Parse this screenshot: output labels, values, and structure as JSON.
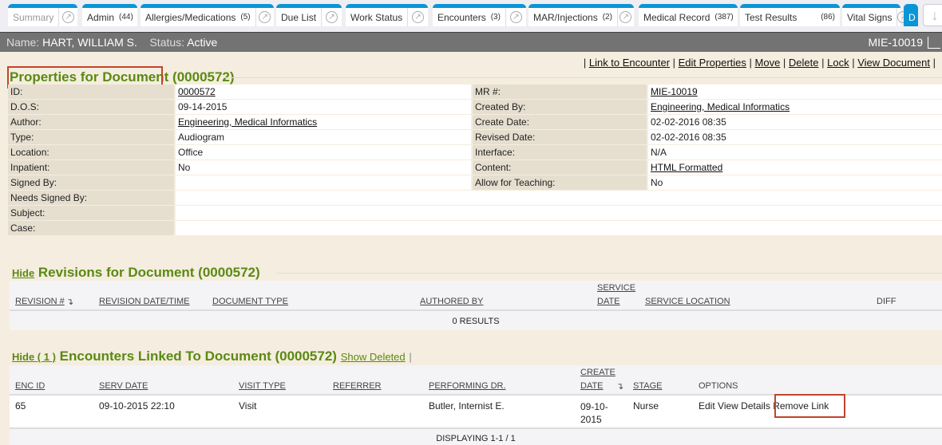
{
  "tabs": [
    {
      "label": "Summary",
      "count": "",
      "ext": true
    },
    {
      "label": "Admin",
      "count": "(44)",
      "ext": false
    },
    {
      "label": "Allergies/Medications",
      "count": "(5)",
      "ext": true
    },
    {
      "label": "Due List",
      "count": "",
      "ext": true
    },
    {
      "label": "Work Status",
      "count": "",
      "ext": true
    },
    {
      "label": "Encounters",
      "count": "(3)",
      "ext": true
    },
    {
      "label": "MAR/Injections",
      "count": "(2)",
      "ext": true
    },
    {
      "label": "Medical Record",
      "count": "(387)",
      "ext": false
    },
    {
      "label": "Test Results",
      "count": "(86)",
      "ext": false
    },
    {
      "label": "Vital Signs",
      "count": "",
      "ext": true
    },
    {
      "label": "D",
      "count": "",
      "ext": false
    }
  ],
  "patient": {
    "name_label": "Name:",
    "name": "HART, WILLIAM S.",
    "status_label": "Status:",
    "status": "Active",
    "mrn": "MIE-10019"
  },
  "actions": [
    "Link to Encounter",
    "Edit Properties",
    "Move",
    "Delete",
    "Lock",
    "View Document"
  ],
  "properties": {
    "title": "Properties for Document",
    "id": "(0000572)",
    "rows": [
      {
        "l1": "ID:",
        "v1": "0000572",
        "link1": true,
        "l2": "MR #:",
        "v2": "MIE-10019",
        "link2": true
      },
      {
        "l1": "D.O.S:",
        "v1": "09-14-2015",
        "l2": "Created By:",
        "v2": "Engineering, Medical Informatics",
        "link2": true
      },
      {
        "l1": "Author:",
        "v1": "Engineering, Medical Informatics",
        "link1": true,
        "l2": "Create Date:",
        "v2": "02-02-2016 08:35"
      },
      {
        "l1": "Type:",
        "v1": "Audiogram",
        "l2": "Revised Date:",
        "v2": "02-02-2016 08:35"
      },
      {
        "l1": "Location:",
        "v1": "Office",
        "l2": "Interface:",
        "v2": "N/A"
      },
      {
        "l1": "Inpatient:",
        "v1": "No",
        "l2": "Content:",
        "v2": "HTML Formatted",
        "link2": true
      },
      {
        "l1": "Signed By:",
        "v1": "",
        "l2": "Allow for Teaching:",
        "v2": "No"
      },
      {
        "l1": "Needs Signed By:",
        "v1": ""
      },
      {
        "l1": "Subject:",
        "v1": ""
      },
      {
        "l1": "Case:",
        "v1": ""
      }
    ]
  },
  "revisions": {
    "hide": "Hide",
    "title": "Revisions for Document (0000572)",
    "columns": [
      "REVISION #",
      "REVISION DATE/TIME",
      "DOCUMENT TYPE",
      "AUTHORED BY",
      "SERVICE",
      "DATE",
      "SERVICE LOCATION",
      "DIFF"
    ],
    "empty": "0 RESULTS"
  },
  "encounters": {
    "hide": "Hide ( 1 )",
    "title": "Encounters Linked To Document (0000572)",
    "show_deleted": "Show Deleted",
    "columns": [
      "ENC ID",
      "SERV DATE",
      "VISIT TYPE",
      "REFERRER",
      "PERFORMING DR.",
      "CREATE",
      "DATE",
      "STAGE",
      "OPTIONS"
    ],
    "rows": [
      {
        "enc_id": "65",
        "serv_date": "09-10-2015 22:10",
        "visit_type": "Visit",
        "referrer": "",
        "performing_dr": "Butler, Internist E.",
        "create_date": "09-10-2015",
        "stage": "Nurse",
        "options": [
          "Edit",
          "View Details",
          "Remove Link"
        ]
      }
    ],
    "footer": "DISPLAYING 1-1 / 1"
  },
  "colors": {
    "accent": "#0a96d6",
    "heading": "#5a8a12",
    "highlight": "#c0452c"
  }
}
